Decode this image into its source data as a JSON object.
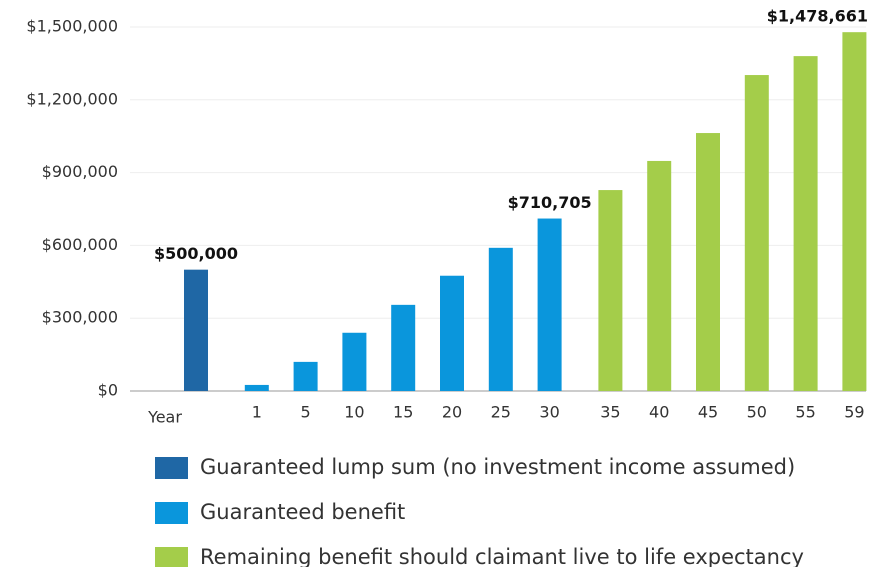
{
  "chart_data": {
    "type": "bar",
    "x_label": "Year",
    "categories": [
      null,
      "1",
      "5",
      "10",
      "15",
      "20",
      "25",
      "30",
      "35",
      "40",
      "45",
      "50",
      "55",
      "59"
    ],
    "series": [
      {
        "name": "Guaranteed lump sum (no investment income assumed)",
        "color": "#1f67a5",
        "values": [
          500000,
          null,
          null,
          null,
          null,
          null,
          null,
          null,
          null,
          null,
          null,
          null,
          null,
          null
        ],
        "value_labels": [
          "$500,000",
          null,
          null,
          null,
          null,
          null,
          null,
          null,
          null,
          null,
          null,
          null,
          null,
          null
        ]
      },
      {
        "name": "Guaranteed benefit",
        "color": "#0a96dc",
        "values": [
          null,
          25000,
          120000,
          240000,
          355000,
          475000,
          590000,
          710705,
          null,
          null,
          null,
          null,
          null,
          null
        ],
        "value_labels": [
          null,
          null,
          null,
          null,
          null,
          null,
          null,
          "$710,705",
          null,
          null,
          null,
          null,
          null,
          null
        ]
      },
      {
        "name": "Remaining benefit should claimant live to life expectancy",
        "color": "#a4cd4a",
        "values": [
          null,
          null,
          null,
          null,
          null,
          null,
          null,
          null,
          828000,
          948000,
          1063000,
          1302000,
          1380000,
          1478661
        ],
        "value_labels": [
          null,
          null,
          null,
          null,
          null,
          null,
          null,
          null,
          null,
          null,
          null,
          null,
          null,
          "$1,478,661"
        ]
      }
    ],
    "ylim": [
      0,
      1500000
    ],
    "yticks": [
      {
        "value": 0,
        "label": "$0"
      },
      {
        "value": 300000,
        "label": "$300,000"
      },
      {
        "value": 600000,
        "label": "$600,000"
      },
      {
        "value": 900000,
        "label": "$900,000"
      },
      {
        "value": 1200000,
        "label": "$1,200,000"
      },
      {
        "value": 1500000,
        "label": "$1,500,000"
      }
    ],
    "grid": true
  }
}
